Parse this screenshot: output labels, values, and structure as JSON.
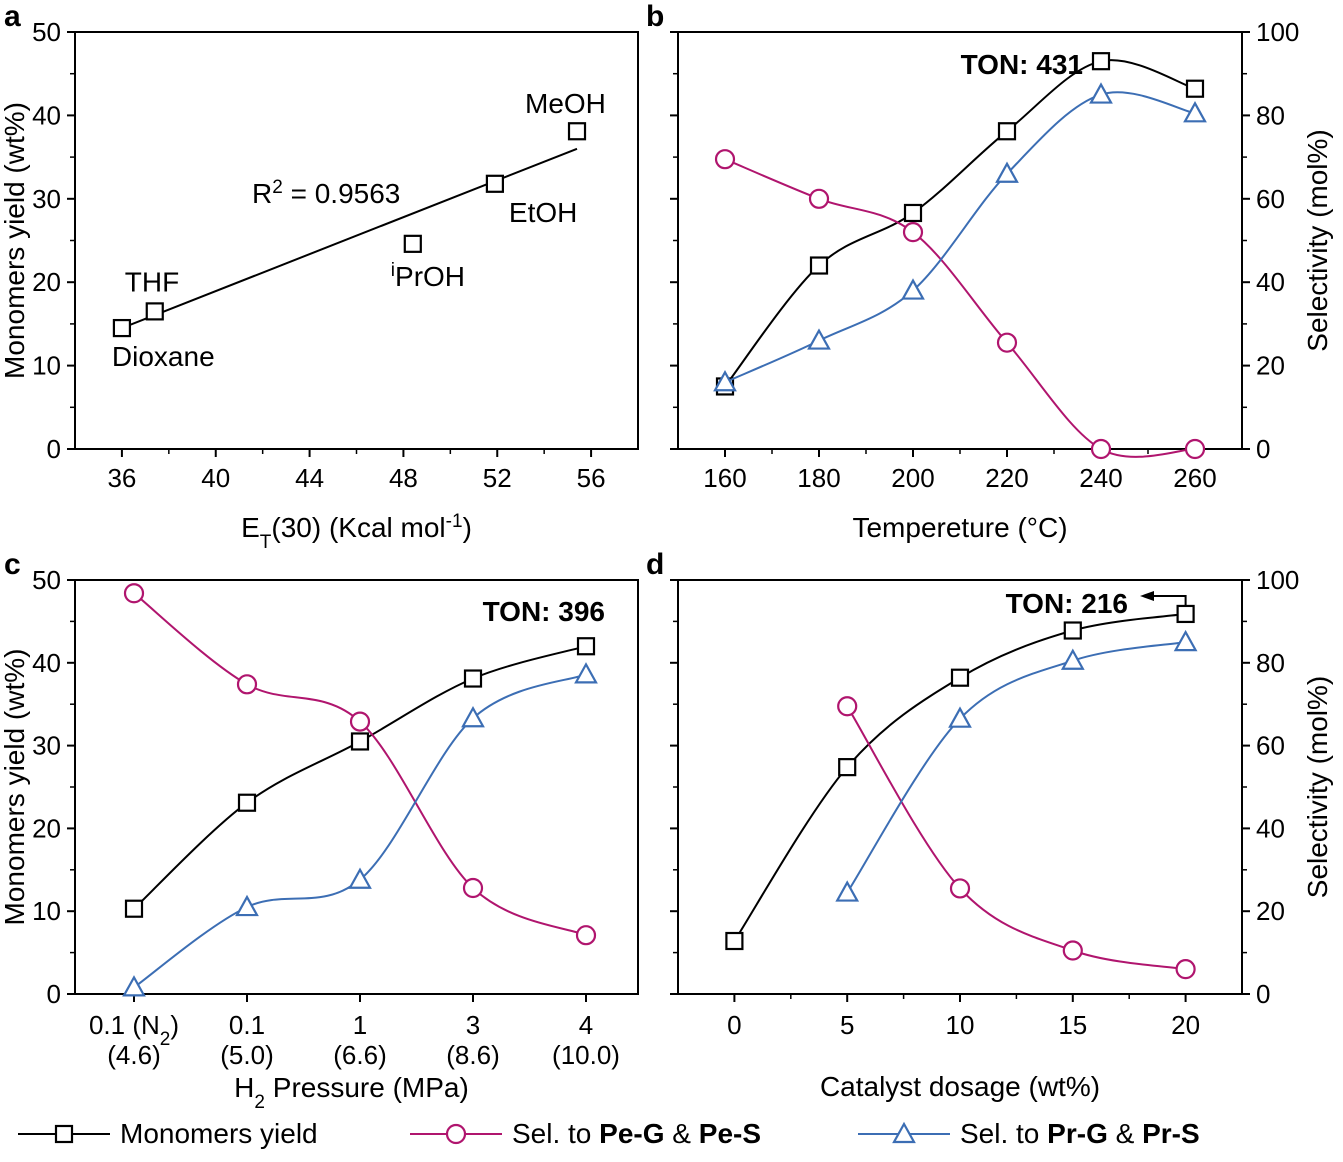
{
  "colors": {
    "monomers": "#000000",
    "pe": "#b0156e",
    "pr": "#3c6eb4"
  },
  "legend": [
    {
      "key": "monomers",
      "marker": "square",
      "label": "Monomers yield"
    },
    {
      "key": "pe",
      "marker": "circle",
      "label_pre": "Sel. to ",
      "b1": "Pe-G",
      "mid": " & ",
      "b2": "Pe-S"
    },
    {
      "key": "pr",
      "marker": "triangle",
      "label_pre": "Sel. to ",
      "b1": "Pr-G",
      "mid": " & ",
      "b2": "Pr-S"
    }
  ],
  "chart_data": [
    {
      "panel": "a",
      "type": "scatter",
      "xlabel_main": "E",
      "xlabel_sub": "T",
      "xlabel_mid": "(30) (Kcal mol",
      "xlabel_sup": "-1",
      "xlabel_end": ")",
      "ylabel": "Monomers yield (wt%)",
      "xlim": [
        34,
        58
      ],
      "ylim": [
        0,
        50
      ],
      "xticks": [
        "36",
        "40",
        "44",
        "48",
        "52",
        "56"
      ],
      "yticks": [
        "0",
        "10",
        "20",
        "30",
        "40",
        "50"
      ],
      "points": [
        {
          "x": 36.0,
          "y": 14.5,
          "label": "Dioxane"
        },
        {
          "x": 37.4,
          "y": 16.5,
          "label": "THF"
        },
        {
          "x": 48.4,
          "y": 24.6,
          "label_sup": "i",
          "label": "PrOH"
        },
        {
          "x": 51.9,
          "y": 31.8,
          "label": "EtOH"
        },
        {
          "x": 55.4,
          "y": 38.1,
          "label": "MeOH"
        }
      ],
      "fit": {
        "x": [
          36.0,
          55.4
        ],
        "y": [
          14.5,
          36.0
        ]
      },
      "r2_pre": "R",
      "r2_sup": "2",
      "r2_post": " = 0.9563"
    },
    {
      "panel": "b",
      "type": "line",
      "xlabel": "Tempereture (°C)",
      "ylabel_right": "Selectivity (mol%)",
      "xlim": [
        150,
        270
      ],
      "ylim_left": [
        0,
        50
      ],
      "ylim_right": [
        0,
        100
      ],
      "xticks": [
        "160",
        "180",
        "200",
        "220",
        "240",
        "260"
      ],
      "yticks_right": [
        "0",
        "20",
        "40",
        "60",
        "80",
        "100"
      ],
      "x": [
        160,
        180,
        200,
        220,
        240,
        260
      ],
      "series": [
        {
          "key": "monomers",
          "axis": "left",
          "values": [
            7.5,
            22.0,
            28.3,
            38.1,
            46.5,
            43.2
          ]
        },
        {
          "key": "pe",
          "axis": "right",
          "values": [
            69.5,
            60.0,
            52.0,
            25.5,
            0.0,
            0.0
          ]
        },
        {
          "key": "pr",
          "axis": "right",
          "values": [
            16.0,
            26.0,
            38.0,
            66.0,
            85.0,
            80.5
          ]
        }
      ],
      "annotation": "TON: 431"
    },
    {
      "panel": "c",
      "type": "line",
      "xlabel_pre": "H",
      "xlabel_sub": "2",
      "xlabel_post": " Pressure (MPa)",
      "ylabel": "Monomers yield (wt%)",
      "ylim": [
        0,
        50
      ],
      "yticks": [
        "0",
        "10",
        "20",
        "30",
        "40",
        "50"
      ],
      "categories": [
        {
          "l1": "0.1 (N",
          "l1_sub": "2",
          "l1_end": ")",
          "l2": "(4.6)"
        },
        {
          "l1": "0.1",
          "l2": "(5.0)"
        },
        {
          "l1": "1",
          "l2": "(6.6)"
        },
        {
          "l1": "3",
          "l2": "(8.6)"
        },
        {
          "l1": "4",
          "l2": "(10.0)"
        }
      ],
      "series": [
        {
          "key": "monomers",
          "axis": "left",
          "values": [
            10.3,
            23.1,
            30.5,
            38.1,
            42.0
          ]
        },
        {
          "key": "pe",
          "axis": "left",
          "values": [
            48.4,
            37.4,
            32.9,
            12.8,
            7.1
          ]
        },
        {
          "key": "pr",
          "axis": "left",
          "values": [
            0.8,
            10.5,
            13.8,
            33.3,
            38.6
          ]
        }
      ],
      "annotation": "TON: 396"
    },
    {
      "panel": "d",
      "type": "line",
      "xlabel": "Catalyst dosage (wt%)",
      "ylabel_right": "Selectivity (mol%)",
      "xlim": [
        -2.5,
        22.5
      ],
      "ylim_left": [
        0,
        50
      ],
      "ylim_right": [
        0,
        100
      ],
      "xticks": [
        "0",
        "5",
        "10",
        "15",
        "20"
      ],
      "yticks_right": [
        "0",
        "20",
        "40",
        "60",
        "80",
        "100"
      ],
      "x": [
        0,
        5,
        10,
        15,
        20
      ],
      "series": [
        {
          "key": "monomers",
          "axis": "left",
          "values": [
            6.4,
            27.4,
            38.2,
            43.9,
            45.9
          ]
        },
        {
          "key": "pe",
          "axis": "right",
          "x": [
            5,
            10,
            15,
            20
          ],
          "values": [
            69.5,
            25.5,
            10.5,
            6.0
          ]
        },
        {
          "key": "pr",
          "axis": "right",
          "x": [
            5,
            10,
            15,
            20
          ],
          "values": [
            24.5,
            66.5,
            80.5,
            85.0
          ]
        }
      ],
      "annotation": "TON: 216"
    }
  ]
}
